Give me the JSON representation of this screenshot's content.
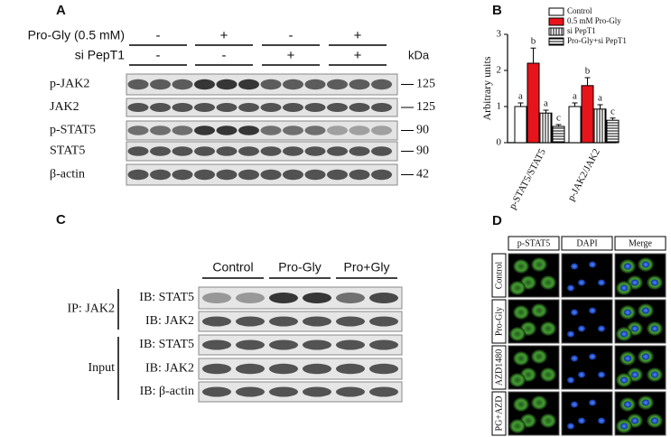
{
  "panel_a": {
    "label": "A",
    "treatments": [
      {
        "name": "Pro-Gly (0.5 mM)",
        "signs": [
          "-",
          "+",
          "-",
          "+"
        ]
      },
      {
        "name": "si PepT1",
        "signs": [
          "-",
          "-",
          "+",
          "+"
        ]
      }
    ],
    "unit": "kDa",
    "blots": [
      {
        "name": "p-JAK2",
        "kda": 125
      },
      {
        "name": "JAK2",
        "kda": 125
      },
      {
        "name": "p-STAT5",
        "kda": 90
      },
      {
        "name": "STAT5",
        "kda": 90
      },
      {
        "name": "β-actin",
        "kda": 42
      }
    ]
  },
  "chart_data": {
    "type": "bar",
    "panel_label": "B",
    "y_label": "Arbitrary units",
    "categories": [
      "p-STAT5/STAT5",
      "p-JAK2/JAK2"
    ],
    "series": [
      {
        "name": "Control",
        "color": "#ffffff",
        "pattern": "none",
        "values": [
          1.0,
          1.0
        ],
        "errors": [
          0.1,
          0.1
        ],
        "letters": [
          "a",
          "a"
        ]
      },
      {
        "name": "0.5 mM Pro-Gly",
        "color": "#e8141b",
        "pattern": "none",
        "values": [
          2.2,
          1.58
        ],
        "errors": [
          0.42,
          0.22
        ],
        "letters": [
          "b",
          "b"
        ]
      },
      {
        "name": "si PepT1",
        "color": "#ffffff",
        "pattern": "vertical",
        "values": [
          0.82,
          0.93
        ],
        "errors": [
          0.08,
          0.12
        ],
        "letters": [
          "a",
          "a"
        ]
      },
      {
        "name": "Pro-Gly+si PepT1",
        "color": "#ffffff",
        "pattern": "horizontal",
        "values": [
          0.45,
          0.62
        ],
        "errors": [
          0.05,
          0.06
        ],
        "letters": [
          "c",
          "c"
        ]
      }
    ],
    "ylim": [
      0,
      3
    ],
    "yticks": [
      0,
      1,
      2,
      3
    ],
    "legend": "top-right"
  },
  "panel_c": {
    "label": "C",
    "columns": [
      "Control",
      "Pro-Gly",
      "Pro+Gly"
    ],
    "groups": [
      {
        "name": "IP: JAK2",
        "rows": [
          "IB: STAT5",
          "IB: JAK2"
        ]
      },
      {
        "name": "Input",
        "rows": [
          "IB: STAT5",
          "IB: JAK2",
          "IB: β-actin"
        ]
      }
    ]
  },
  "panel_d": {
    "label": "D",
    "columns": [
      "p-STAT5",
      "DAPI",
      "Merge"
    ],
    "rows": [
      "Control",
      "Pro-Gly",
      "AZD1480",
      "PG+AZD"
    ]
  }
}
